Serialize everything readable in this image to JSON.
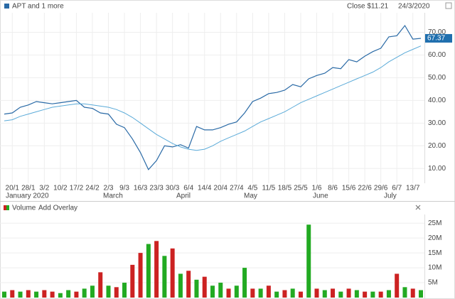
{
  "chart_data": [
    {
      "type": "line",
      "legend_text": "APT and 1 more",
      "close_label": "Close $11.21",
      "date_label": "24/3/2020",
      "categories": [
        null,
        "20/1",
        null,
        "28/1",
        null,
        "3/2",
        null,
        "10/2",
        null,
        "17/2",
        null,
        "24/2",
        null,
        "2/3",
        null,
        "9/3",
        null,
        "16/3",
        null,
        "23/3",
        null,
        "30/3",
        null,
        "6/4",
        null,
        "14/4",
        null,
        "20/4",
        null,
        "27/4",
        null,
        "4/5",
        null,
        "11/5",
        null,
        "18/5",
        null,
        "25/5",
        null,
        "1/6",
        null,
        "8/6",
        null,
        "15/6",
        null,
        "22/6",
        null,
        "29/6",
        null,
        "6/7",
        null,
        "13/7",
        null
      ],
      "month_labels": [
        "January 2020",
        "March",
        "April",
        "May",
        "June",
        "July"
      ],
      "series": [
        {
          "name": "APT and 1 more",
          "color": "#2a6aa6",
          "values": [
            34,
            34.5,
            37,
            38,
            39.5,
            39,
            38.5,
            39,
            39.5,
            40,
            37,
            36.5,
            34.5,
            34,
            29.5,
            28,
            23,
            17,
            9.5,
            13.5,
            20,
            19.5,
            20.5,
            19,
            28.5,
            27,
            27,
            28,
            29.5,
            30.5,
            34.5,
            39.5,
            41,
            43,
            43.5,
            44.5,
            47,
            46,
            49.5,
            51,
            52,
            54.5,
            54,
            58,
            57,
            59.5,
            61.5,
            63,
            68,
            68.5,
            73,
            67,
            67.37
          ]
        },
        {
          "color": "#5aaad8",
          "values": [
            31,
            31.5,
            33,
            34,
            35,
            36,
            37,
            37.5,
            38,
            38.5,
            38.5,
            38,
            37.5,
            37,
            36,
            34.5,
            32.5,
            30,
            27.5,
            25,
            23,
            21,
            19.5,
            18.5,
            18,
            18.5,
            20,
            22,
            23.5,
            25,
            26.5,
            28.5,
            30.5,
            32,
            33.5,
            35,
            37,
            39,
            40.5,
            42,
            43.5,
            45,
            46.5,
            48,
            49.5,
            51,
            52.5,
            54.5,
            57,
            59,
            61,
            62.5,
            64
          ]
        }
      ],
      "ylim": [
        3.5,
        78
      ],
      "yticks": [
        {
          "value": 10,
          "label": "10.00"
        },
        {
          "value": 20,
          "label": "20.00"
        },
        {
          "value": 30,
          "label": "30.00"
        },
        {
          "value": 40,
          "label": "40.00"
        },
        {
          "value": 50,
          "label": "50.00"
        },
        {
          "value": 60,
          "label": "60.00"
        },
        {
          "value": 70,
          "label": "70.00"
        }
      ],
      "grid": true
    },
    {
      "type": "bar",
      "title": "Volume",
      "overlay_button": "Add Overlay",
      "values": [
        2000000,
        2500000,
        2000000,
        2500000,
        2000000,
        2500000,
        2000000,
        1500000,
        2500000,
        2000000,
        3000000,
        4000000,
        8500000,
        4000000,
        3500000,
        5000000,
        11000000,
        15000000,
        18000000,
        19000000,
        14000000,
        16500000,
        8000000,
        9000000,
        6000000,
        7000000,
        4000000,
        5000000,
        3000000,
        4000000,
        10000000,
        3000000,
        3000000,
        4000000,
        2000000,
        2500000,
        3000000,
        2000000,
        24500000,
        3000000,
        2500000,
        3000000,
        2000000,
        3000000,
        2500000,
        2000000,
        2000000,
        2000000,
        2500000,
        8000000,
        3500000,
        3000000,
        2500000
      ],
      "colors": [
        "#22aa22",
        "#cc2222",
        "#22aa22",
        "#cc2222",
        "#22aa22",
        "#cc2222",
        "#cc2222",
        "#22aa22",
        "#22aa22",
        "#cc2222",
        "#22aa22",
        "#22aa22",
        "#cc2222",
        "#22aa22",
        "#cc2222",
        "#22aa22",
        "#cc2222",
        "#cc2222",
        "#22aa22",
        "#cc2222",
        "#22aa22",
        "#cc2222",
        "#22aa22",
        "#cc2222",
        "#22aa22",
        "#cc2222",
        "#22aa22",
        "#22aa22",
        "#cc2222",
        "#22aa22",
        "#22aa22",
        "#cc2222",
        "#22aa22",
        "#cc2222",
        "#22aa22",
        "#cc2222",
        "#22aa22",
        "#cc2222",
        "#22aa22",
        "#cc2222",
        "#22aa22",
        "#cc2222",
        "#22aa22",
        "#cc2222",
        "#22aa22",
        "#cc2222",
        "#22aa22",
        "#cc2222",
        "#22aa22",
        "#cc2222",
        "#22aa22",
        "#cc2222",
        "#22aa22"
      ],
      "ylim": [
        0,
        26000000
      ],
      "yticks": [
        {
          "value": 5000000,
          "label": "5M"
        },
        {
          "value": 10000000,
          "label": "10M"
        },
        {
          "value": 15000000,
          "label": "15M"
        },
        {
          "value": 20000000,
          "label": "20M"
        },
        {
          "value": 25000000,
          "label": "25M"
        }
      ],
      "grid": true
    }
  ]
}
